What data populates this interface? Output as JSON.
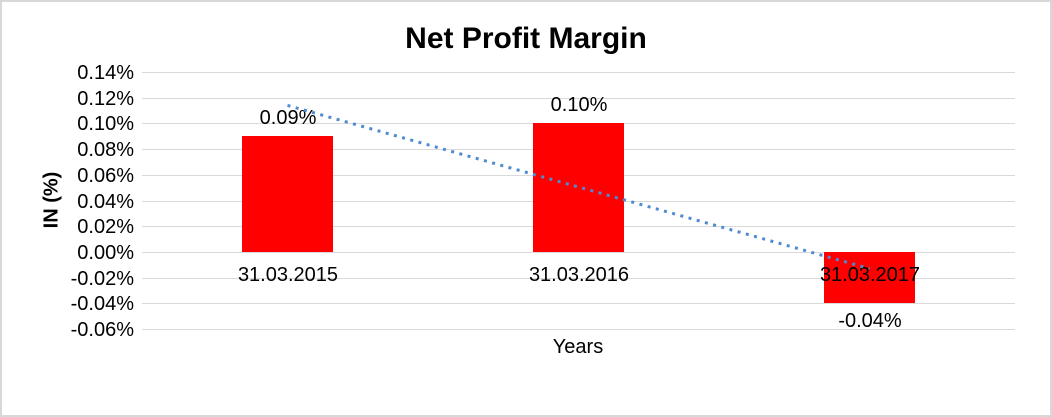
{
  "chart_data": {
    "type": "bar",
    "title": "Net Profit Margin",
    "categories": [
      "31.03.2015",
      "31.03.2016",
      "31.03.2017"
    ],
    "series": [
      {
        "name": "Net Profit Margin",
        "values": [
          0.09,
          0.1,
          -0.04
        ]
      }
    ],
    "data_labels": [
      "0.09%",
      "0.10%",
      "-0.04%"
    ],
    "xlabel": "Years",
    "ylabel": "IN (%)",
    "ylim": [
      -0.06,
      0.14
    ],
    "ytick_step": 0.02,
    "yticks": [
      0.14,
      0.12,
      0.1,
      0.08,
      0.06,
      0.04,
      0.02,
      0.0,
      -0.02,
      -0.04,
      -0.06
    ],
    "ytick_labels": [
      "0.14%",
      "0.12%",
      "0.10%",
      "0.08%",
      "0.06%",
      "0.04%",
      "0.02%",
      "0.00%",
      "-0.02%",
      "-0.04%",
      "-0.06%"
    ],
    "grid": true,
    "legend": "none",
    "trendline": {
      "type": "linear",
      "style": "dotted",
      "points": [
        {
          "category_index": 0,
          "value": 0.114
        },
        {
          "category_index": 2,
          "value": -0.013
        }
      ]
    },
    "colors": {
      "bar": "#ff0000",
      "gridline": "#d9d9d9",
      "trendline": "#4e8bd0",
      "text": "#000000",
      "background": "#ffffff",
      "border": "#d8d8d8"
    }
  }
}
